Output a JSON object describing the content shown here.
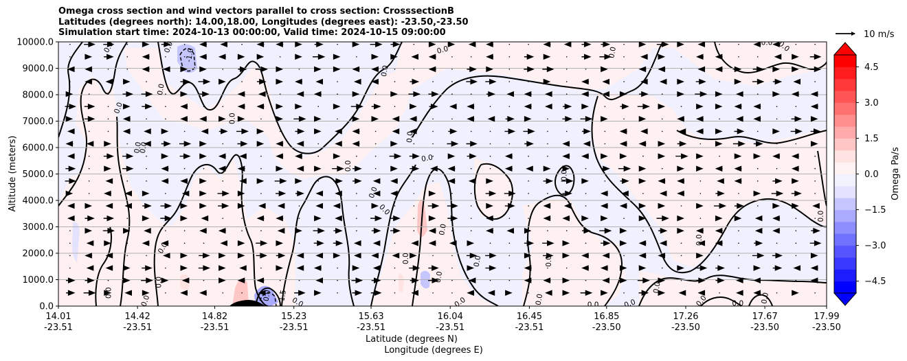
{
  "chart_data": {
    "type": "contour",
    "title_lines": [
      "Omega cross section and wind vectors parallel to cross section: CrosssectionB",
      "Latitudes (degrees north): 14.00,18.00, Longitudes (degrees east): -23.50,-23.50",
      "Simulation start time: 2024-10-13 00:00:00, Valid time: 2024-10-15 09:00:00"
    ],
    "xlabel_lines": [
      "Latitude (degrees N)",
      "Longitude (degrees E)"
    ],
    "ylabel": "Altitude (meters)",
    "ylim": [
      0,
      10000
    ],
    "y_ticks": [
      "0.0",
      "1000.0",
      "2000.0",
      "3000.0",
      "4000.0",
      "5000.0",
      "6000.0",
      "7000.0",
      "8000.0",
      "9000.0",
      "10000.0"
    ],
    "y_tick_values": [
      0,
      1000,
      2000,
      3000,
      4000,
      5000,
      6000,
      7000,
      8000,
      9000,
      10000
    ],
    "x_range": [
      14.01,
      17.99
    ],
    "x_ticks": [
      {
        "lat": "14.01",
        "lon": "-23.51"
      },
      {
        "lat": "14.42",
        "lon": "-23.51"
      },
      {
        "lat": "14.82",
        "lon": "-23.51"
      },
      {
        "lat": "15.23",
        "lon": "-23.51"
      },
      {
        "lat": "15.63",
        "lon": "-23.51"
      },
      {
        "lat": "16.04",
        "lon": "-23.51"
      },
      {
        "lat": "16.45",
        "lon": "-23.51"
      },
      {
        "lat": "16.85",
        "lon": "-23.50"
      },
      {
        "lat": "17.26",
        "lon": "-23.50"
      },
      {
        "lat": "17.67",
        "lon": "-23.50"
      },
      {
        "lat": "17.99",
        "lon": "-23.50"
      }
    ],
    "x_tick_values": [
      14.01,
      14.42,
      14.82,
      15.23,
      15.63,
      16.04,
      16.45,
      16.85,
      17.26,
      17.67,
      17.99
    ],
    "grid": "horizontal",
    "colorbar": {
      "label": "Omega Pa/s",
      "range": [
        -5.0,
        5.0
      ],
      "extend": "both",
      "tick_values": [
        -4.5,
        -3.0,
        -1.5,
        0.0,
        1.5,
        3.0,
        4.5
      ],
      "tick_labels": [
        "−4.5",
        "−3.0",
        "−1.5",
        "0.0",
        "1.5",
        "3.0",
        "4.5"
      ],
      "colors": [
        "#0000ff",
        "#1c1cff",
        "#3939ff",
        "#5555ff",
        "#7171ff",
        "#8e8eff",
        "#aaaaff",
        "#c6c6ff",
        "#e3e3ff",
        "#f2f2ff",
        "#fff2f2",
        "#ffe3e3",
        "#ffc6c6",
        "#ffaaaa",
        "#ff8e8e",
        "#ff7171",
        "#ff5555",
        "#ff3939",
        "#ff1c1c",
        "#ff0000"
      ],
      "under_color": "#0000ff",
      "over_color": "#ff0000"
    },
    "quiver_key": {
      "label": "10 m/s",
      "value": 10
    },
    "contour_levels": [
      0.0,
      -1.0,
      -1.5
    ],
    "contour_labels": [
      {
        "text": "0.0",
        "lat": 14.27,
        "alt": 9800,
        "rot": -60
      },
      {
        "text": "0.0",
        "lat": 14.58,
        "alt": 9800,
        "rot": -70
      },
      {
        "text": "-1.0",
        "lat": 14.69,
        "alt": 9500,
        "rot": -80
      },
      {
        "text": "0.0",
        "lat": 15.7,
        "alt": 8900,
        "rot": -80
      },
      {
        "text": "0.0",
        "lat": 16.0,
        "alt": 9700,
        "rot": -15
      },
      {
        "text": "0.0",
        "lat": 16.88,
        "alt": 9600,
        "rot": -80
      },
      {
        "text": "0.0",
        "lat": 17.68,
        "alt": 9980,
        "rot": 0
      },
      {
        "text": "0.0",
        "lat": 17.77,
        "alt": 9830,
        "rot": 40
      },
      {
        "text": "0.0",
        "lat": 14.54,
        "alt": 8200,
        "rot": -80
      },
      {
        "text": "0.0",
        "lat": 14.32,
        "alt": 7500,
        "rot": -70
      },
      {
        "text": "0.0",
        "lat": 14.42,
        "alt": 6000,
        "rot": -80
      },
      {
        "text": "0.0",
        "lat": 14.45,
        "alt": 6000,
        "rot": -80
      },
      {
        "text": "0.0",
        "lat": 14.91,
        "alt": 7100,
        "rot": -90
      },
      {
        "text": "0.0",
        "lat": 15.83,
        "alt": 6400,
        "rot": -85
      },
      {
        "text": "0.0",
        "lat": 15.92,
        "alt": 5600,
        "rot": -10
      },
      {
        "text": "0.0",
        "lat": 15.51,
        "alt": 5300,
        "rot": -90
      },
      {
        "text": "0.0",
        "lat": 15.64,
        "alt": 4300,
        "rot": -70
      },
      {
        "text": "0.0",
        "lat": 16.63,
        "alt": 4950,
        "rot": -90
      },
      {
        "text": "0.0",
        "lat": 15.7,
        "alt": 3650,
        "rot": 45
      },
      {
        "text": "0.0",
        "lat": 16.0,
        "alt": 2900,
        "rot": -80
      },
      {
        "text": "0.0",
        "lat": 17.33,
        "alt": 2500,
        "rot": -90
      },
      {
        "text": "0.0",
        "lat": 17.96,
        "alt": 3400,
        "rot": -90
      },
      {
        "text": "0.0",
        "lat": 14.55,
        "alt": 2200,
        "rot": -60
      },
      {
        "text": "0.0",
        "lat": 15.81,
        "alt": 1800,
        "rot": -90
      },
      {
        "text": "0.0",
        "lat": 16.18,
        "alt": 1700,
        "rot": -80
      },
      {
        "text": "0.0",
        "lat": 16.55,
        "alt": 1700,
        "rot": -90
      },
      {
        "text": "0.0",
        "lat": 15.98,
        "alt": 1100,
        "rot": -80
      },
      {
        "text": "0.0",
        "lat": 14.53,
        "alt": 900,
        "rot": -90
      },
      {
        "text": "0.0",
        "lat": 14.27,
        "alt": 500,
        "rot": -90
      },
      {
        "text": "0.0",
        "lat": 14.46,
        "alt": 200,
        "rot": -70
      },
      {
        "text": "0.0",
        "lat": 15.09,
        "alt": 400,
        "rot": -80
      },
      {
        "text": "-1.5",
        "lat": 15.17,
        "alt": 350,
        "rot": -80
      },
      {
        "text": "0.0",
        "lat": 15.25,
        "alt": 150,
        "rot": 30
      },
      {
        "text": "0.0",
        "lat": 16.09,
        "alt": 150,
        "rot": -35
      },
      {
        "text": "0.0",
        "lat": 16.5,
        "alt": 250,
        "rot": -80
      },
      {
        "text": "0.0",
        "lat": 16.78,
        "alt": 50,
        "rot": 0
      },
      {
        "text": "0.0",
        "lat": 16.97,
        "alt": 100,
        "rot": -20
      },
      {
        "text": "0.0",
        "lat": 17.11,
        "alt": 700,
        "rot": -80
      },
      {
        "text": "0.0",
        "lat": 17.34,
        "alt": 200,
        "rot": -50
      },
      {
        "text": "0.0",
        "lat": 17.53,
        "alt": 100,
        "rot": 0
      },
      {
        "text": "0.0",
        "lat": 17.67,
        "alt": 300,
        "rot": -80
      }
    ]
  }
}
